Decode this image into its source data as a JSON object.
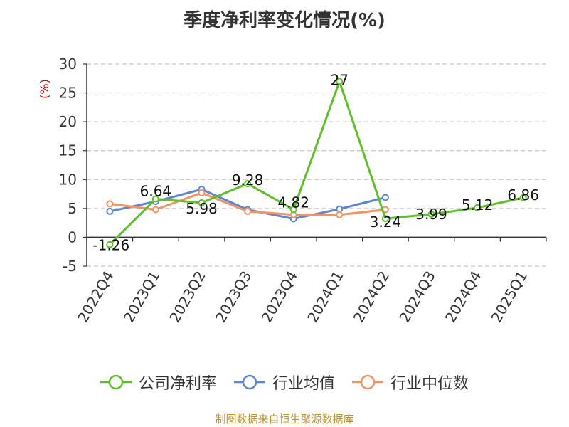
{
  "chart_data": {
    "type": "line",
    "title": "季度净利率变化情况(%)",
    "ylabel": "(%)",
    "xlabel": "",
    "categories": [
      "2022Q4",
      "2023Q1",
      "2023Q2",
      "2023Q3",
      "2023Q4",
      "2024Q1",
      "2024Q2",
      "2024Q3",
      "2024Q4",
      "2025Q1"
    ],
    "ylim": [
      -5,
      30
    ],
    "yticks": [
      -5,
      0,
      5,
      10,
      15,
      20,
      25,
      30
    ],
    "grid": true,
    "legend_position": "bottom",
    "series": [
      {
        "name": "公司净利率",
        "color": "#5cc027",
        "values": [
          -1.26,
          6.64,
          5.98,
          9.28,
          4.82,
          27,
          3.24,
          3.99,
          5.12,
          6.86
        ],
        "labels": [
          "-1.26",
          "6.64",
          "5.98",
          "9.28",
          "4.82",
          "27",
          "3.24",
          "3.99",
          "5.12",
          "6.86"
        ]
      },
      {
        "name": "行业均值",
        "color": "#5a86d8",
        "values": [
          4.5,
          6.2,
          8.3,
          4.8,
          3.2,
          4.9,
          6.9,
          null,
          null,
          null
        ]
      },
      {
        "name": "行业中位数",
        "color": "#f4935e",
        "values": [
          5.8,
          4.8,
          7.7,
          4.5,
          3.9,
          3.9,
          4.8,
          null,
          null,
          null
        ]
      }
    ]
  },
  "source": "制图数据来自恒生聚源数据库"
}
